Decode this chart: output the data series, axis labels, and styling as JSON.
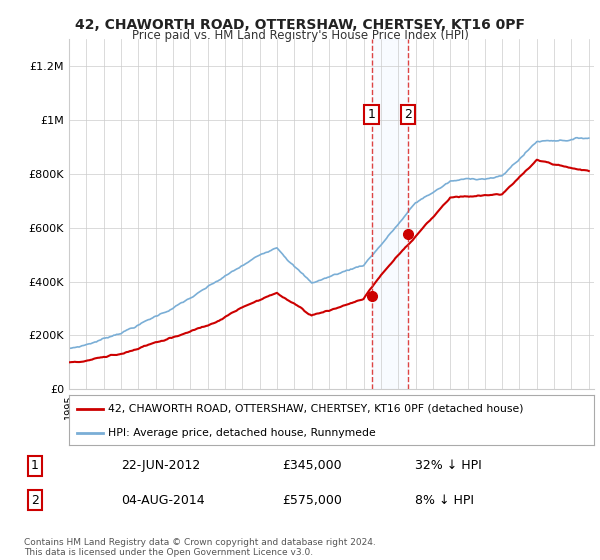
{
  "title": "42, CHAWORTH ROAD, OTTERSHAW, CHERTSEY, KT16 0PF",
  "subtitle": "Price paid vs. HM Land Registry's House Price Index (HPI)",
  "red_line_label": "42, CHAWORTH ROAD, OTTERSHAW, CHERTSEY, KT16 0PF (detached house)",
  "blue_line_label": "HPI: Average price, detached house, Runnymede",
  "transaction1_date": "22-JUN-2012",
  "transaction1_price": "£345,000",
  "transaction1_hpi": "32% ↓ HPI",
  "transaction2_date": "04-AUG-2014",
  "transaction2_price": "£575,000",
  "transaction2_hpi": "8% ↓ HPI",
  "footer": "Contains HM Land Registry data © Crown copyright and database right 2024.\nThis data is licensed under the Open Government Licence v3.0.",
  "red_color": "#cc0000",
  "blue_color": "#7aaed6",
  "vline_color": "#dd4444",
  "span_color": "#ddeeff",
  "ylim": [
    0,
    1300000
  ],
  "yticks": [
    0,
    200000,
    400000,
    600000,
    800000,
    1000000,
    1200000
  ],
  "ytick_labels": [
    "£0",
    "£200K",
    "£400K",
    "£600K",
    "£800K",
    "£1M",
    "£1.2M"
  ],
  "t1_year": 2012.46,
  "t1_price": 345000,
  "t2_year": 2014.58,
  "t2_price": 575000
}
